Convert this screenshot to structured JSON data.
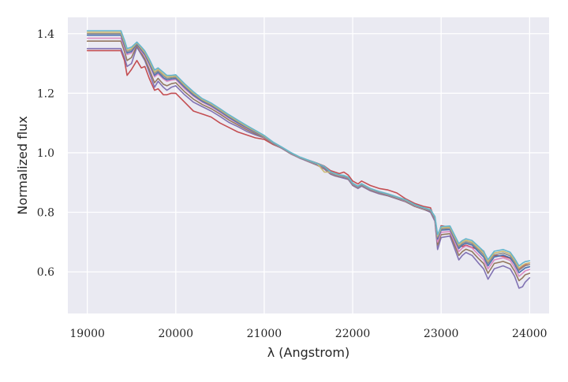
{
  "chart_data": {
    "type": "line",
    "title": "",
    "xlabel": "λ (Angstrom)",
    "ylabel": "Normalized flux",
    "xlim": [
      18780,
      24220
    ],
    "ylim": [
      0.46,
      1.455
    ],
    "xticks": [
      19000,
      20000,
      21000,
      22000,
      23000,
      24000
    ],
    "yticks": [
      0.6,
      0.8,
      1.0,
      1.2,
      1.4
    ],
    "xtick_labels": [
      "19000",
      "20000",
      "21000",
      "22000",
      "23000",
      "24000"
    ],
    "ytick_labels": [
      "0.6",
      "0.8",
      "1.0",
      "1.2",
      "1.4"
    ],
    "grid": true,
    "legend": false,
    "background": "#eaeaf2",
    "x": [
      19000,
      19380,
      19420,
      19450,
      19500,
      19560,
      19610,
      19650,
      19700,
      19760,
      19800,
      19860,
      19900,
      19950,
      20000,
      20100,
      20200,
      20300,
      20400,
      20500,
      20600,
      20700,
      20800,
      20900,
      21000,
      21100,
      21200,
      21300,
      21400,
      21500,
      21600,
      21680,
      21750,
      21800,
      21850,
      21900,
      21950,
      22000,
      22060,
      22100,
      22200,
      22300,
      22400,
      22500,
      22600,
      22700,
      22800,
      22880,
      22930,
      22960,
      23000,
      23100,
      23200,
      23240,
      23280,
      23350,
      23420,
      23480,
      23530,
      23600,
      23700,
      23780,
      23830,
      23880,
      23920,
      23950,
      24000
    ],
    "series": [
      {
        "color": "#c44e52",
        "values": [
          1.343,
          1.343,
          1.31,
          1.26,
          1.28,
          1.31,
          1.285,
          1.29,
          1.25,
          1.21,
          1.215,
          1.195,
          1.195,
          1.2,
          1.2,
          1.17,
          1.14,
          1.13,
          1.12,
          1.1,
          1.085,
          1.07,
          1.06,
          1.05,
          1.045,
          1.028,
          1.015,
          0.998,
          0.982,
          0.975,
          0.965,
          0.955,
          0.94,
          0.935,
          0.93,
          0.935,
          0.925,
          0.905,
          0.895,
          0.905,
          0.89,
          0.88,
          0.875,
          0.865,
          0.845,
          0.83,
          0.82,
          0.815,
          0.775,
          0.715,
          0.755,
          0.75,
          0.69,
          0.685,
          0.69,
          0.682,
          0.675,
          0.67,
          0.635,
          0.655,
          0.652,
          0.645,
          0.628,
          0.61,
          0.617,
          0.624,
          0.63
        ]
      },
      {
        "color": "#8172b3",
        "values": [
          1.35,
          1.35,
          1.32,
          1.29,
          1.3,
          1.355,
          1.33,
          1.31,
          1.27,
          1.22,
          1.24,
          1.22,
          1.21,
          1.22,
          1.225,
          1.195,
          1.17,
          1.155,
          1.14,
          1.122,
          1.102,
          1.088,
          1.072,
          1.06,
          1.05,
          1.032,
          1.016,
          0.998,
          0.982,
          0.97,
          0.958,
          0.945,
          0.928,
          0.922,
          0.918,
          0.914,
          0.91,
          0.89,
          0.88,
          0.888,
          0.872,
          0.862,
          0.855,
          0.845,
          0.835,
          0.82,
          0.81,
          0.8,
          0.77,
          0.675,
          0.715,
          0.72,
          0.64,
          0.655,
          0.665,
          0.655,
          0.63,
          0.61,
          0.575,
          0.61,
          0.62,
          0.61,
          0.585,
          0.545,
          0.55,
          0.565,
          0.58
        ]
      },
      {
        "color": "#937860",
        "values": [
          1.375,
          1.375,
          1.34,
          1.31,
          1.32,
          1.36,
          1.335,
          1.315,
          1.28,
          1.235,
          1.25,
          1.23,
          1.225,
          1.232,
          1.235,
          1.205,
          1.18,
          1.162,
          1.148,
          1.13,
          1.11,
          1.094,
          1.078,
          1.064,
          1.05,
          1.03,
          1.014,
          0.996,
          0.982,
          0.97,
          0.958,
          0.948,
          0.93,
          0.924,
          0.92,
          0.918,
          0.912,
          0.892,
          0.882,
          0.89,
          0.874,
          0.864,
          0.856,
          0.846,
          0.836,
          0.82,
          0.81,
          0.803,
          0.775,
          0.69,
          0.725,
          0.728,
          0.655,
          0.668,
          0.676,
          0.668,
          0.645,
          0.628,
          0.595,
          0.628,
          0.635,
          0.626,
          0.602,
          0.57,
          0.58,
          0.59,
          0.595
        ]
      },
      {
        "color": "#da8bc3",
        "values": [
          1.385,
          1.385,
          1.352,
          1.33,
          1.335,
          1.365,
          1.34,
          1.325,
          1.295,
          1.255,
          1.265,
          1.248,
          1.24,
          1.244,
          1.246,
          1.215,
          1.19,
          1.17,
          1.155,
          1.136,
          1.116,
          1.099,
          1.082,
          1.068,
          1.052,
          1.032,
          1.015,
          0.997,
          0.982,
          0.971,
          0.96,
          0.95,
          0.932,
          0.926,
          0.922,
          0.92,
          0.914,
          0.894,
          0.884,
          0.892,
          0.876,
          0.866,
          0.858,
          0.848,
          0.838,
          0.822,
          0.812,
          0.805,
          0.778,
          0.7,
          0.733,
          0.735,
          0.668,
          0.68,
          0.687,
          0.68,
          0.658,
          0.64,
          0.61,
          0.64,
          0.647,
          0.638,
          0.615,
          0.585,
          0.595,
          0.603,
          0.608
        ]
      },
      {
        "color": "#4c72b0",
        "values": [
          1.395,
          1.395,
          1.36,
          1.335,
          1.34,
          1.365,
          1.345,
          1.33,
          1.3,
          1.26,
          1.27,
          1.252,
          1.245,
          1.248,
          1.25,
          1.22,
          1.193,
          1.173,
          1.158,
          1.139,
          1.119,
          1.101,
          1.084,
          1.069,
          1.053,
          1.033,
          1.016,
          0.998,
          0.983,
          0.972,
          0.961,
          0.951,
          0.933,
          0.927,
          0.923,
          0.921,
          0.915,
          0.895,
          0.885,
          0.893,
          0.877,
          0.867,
          0.859,
          0.849,
          0.839,
          0.823,
          0.813,
          0.806,
          0.78,
          0.71,
          0.74,
          0.742,
          0.678,
          0.69,
          0.696,
          0.69,
          0.668,
          0.65,
          0.62,
          0.65,
          0.656,
          0.647,
          0.625,
          0.597,
          0.606,
          0.613,
          0.617
        ]
      },
      {
        "color": "#8c8c8c",
        "values": [
          1.4,
          1.4,
          1.366,
          1.34,
          1.345,
          1.368,
          1.348,
          1.334,
          1.305,
          1.266,
          1.275,
          1.258,
          1.25,
          1.252,
          1.254,
          1.224,
          1.197,
          1.176,
          1.161,
          1.142,
          1.122,
          1.104,
          1.086,
          1.071,
          1.054,
          1.034,
          1.017,
          0.999,
          0.984,
          0.973,
          0.962,
          0.952,
          0.934,
          0.928,
          0.924,
          0.922,
          0.916,
          0.896,
          0.886,
          0.894,
          0.878,
          0.868,
          0.86,
          0.85,
          0.84,
          0.824,
          0.814,
          0.807,
          0.782,
          0.715,
          0.744,
          0.746,
          0.684,
          0.695,
          0.701,
          0.695,
          0.674,
          0.657,
          0.628,
          0.657,
          0.663,
          0.654,
          0.632,
          0.605,
          0.614,
          0.62,
          0.624
        ]
      },
      {
        "color": "#ccb974",
        "values": [
          1.405,
          1.405,
          1.372,
          1.345,
          1.35,
          1.37,
          1.352,
          1.338,
          1.31,
          1.272,
          1.28,
          1.264,
          1.255,
          1.256,
          1.258,
          1.228,
          1.201,
          1.179,
          1.164,
          1.145,
          1.125,
          1.107,
          1.089,
          1.073,
          1.056,
          1.035,
          1.018,
          1.0,
          0.985,
          0.974,
          0.963,
          0.935,
          0.935,
          0.929,
          0.925,
          0.923,
          0.917,
          0.897,
          0.887,
          0.895,
          0.879,
          0.869,
          0.861,
          0.851,
          0.841,
          0.825,
          0.815,
          0.808,
          0.784,
          0.72,
          0.748,
          0.75,
          0.69,
          0.7,
          0.706,
          0.7,
          0.68,
          0.663,
          0.635,
          0.663,
          0.669,
          0.66,
          0.639,
          0.613,
          0.622,
          0.627,
          0.63
        ]
      },
      {
        "color": "#64b5cd",
        "values": [
          1.41,
          1.41,
          1.378,
          1.35,
          1.355,
          1.372,
          1.356,
          1.342,
          1.315,
          1.278,
          1.285,
          1.27,
          1.26,
          1.26,
          1.262,
          1.232,
          1.205,
          1.182,
          1.167,
          1.148,
          1.128,
          1.11,
          1.092,
          1.075,
          1.058,
          1.036,
          1.019,
          1.001,
          0.986,
          0.975,
          0.964,
          0.954,
          0.936,
          0.93,
          0.926,
          0.924,
          0.918,
          0.898,
          0.888,
          0.896,
          0.88,
          0.87,
          0.862,
          0.852,
          0.842,
          0.826,
          0.816,
          0.809,
          0.786,
          0.725,
          0.752,
          0.754,
          0.695,
          0.705,
          0.711,
          0.705,
          0.686,
          0.669,
          0.641,
          0.669,
          0.675,
          0.666,
          0.645,
          0.62,
          0.629,
          0.634,
          0.637
        ]
      }
    ]
  }
}
